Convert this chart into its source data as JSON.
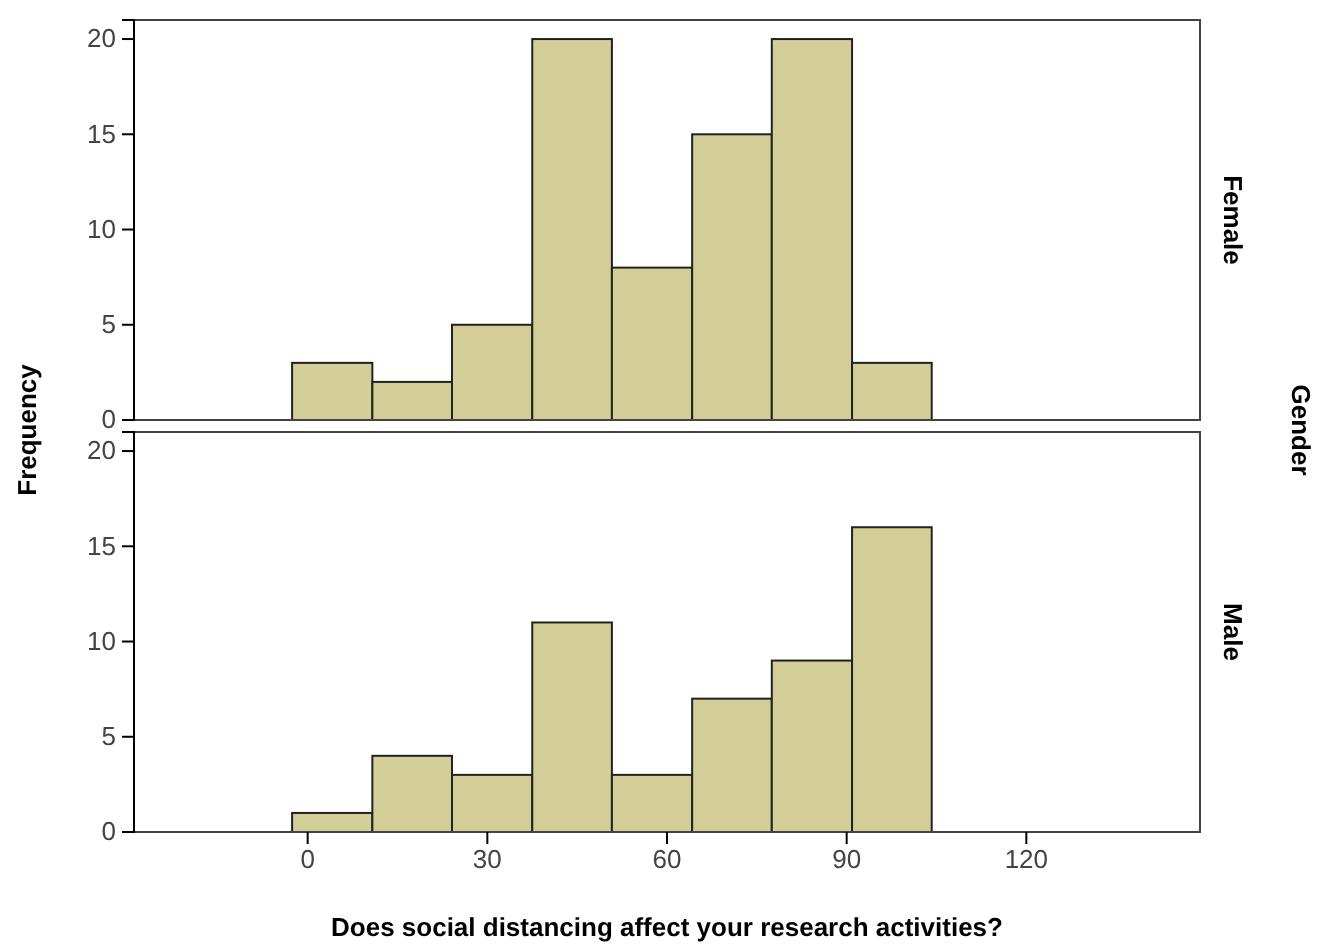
{
  "chart_data": [
    {
      "type": "histogram",
      "ylabel": "Frequency",
      "legend_title": "Gender",
      "bins": [
        -2.6,
        10.8,
        24.1,
        37.5,
        50.8,
        64.2,
        77.5,
        90.9,
        104.2
      ],
      "series": [
        {
          "name": "Female",
          "color": "#d3ce97",
          "values": [
            3,
            2,
            5,
            20,
            8,
            15,
            20,
            3
          ]
        }
      ],
      "xlim": [
        -29,
        149
      ],
      "ylim": [
        0,
        21
      ],
      "yticks": [
        0,
        5,
        10,
        15,
        20
      ],
      "tick_labels": "y"
    },
    {
      "type": "histogram",
      "xlabel": "Does social distancing affect your research activities?",
      "bins": [
        -2.6,
        10.8,
        24.1,
        37.5,
        50.8,
        64.2,
        77.5,
        90.9,
        104.2
      ],
      "series": [
        {
          "name": "Male",
          "color": "#d3ce97",
          "values": [
            1,
            4,
            3,
            11,
            3,
            7,
            9,
            16
          ]
        }
      ],
      "xlim": [
        -29,
        149
      ],
      "ylim": [
        0,
        21
      ],
      "xticks": [
        0,
        30,
        60,
        90,
        120
      ],
      "yticks": [
        0,
        5,
        10,
        15,
        20
      ]
    }
  ]
}
